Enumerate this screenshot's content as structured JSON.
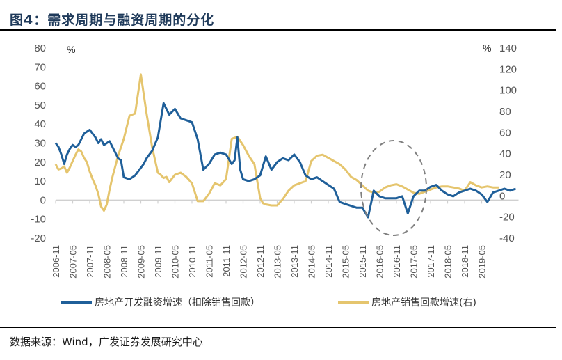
{
  "figure": {
    "title": "图4：需求周期与融资周期的分化",
    "source": "数据来源：Wind，广发证券发展研究中心"
  },
  "chart_data": {
    "type": "line",
    "title": "需求周期与融资周期的分化",
    "left_axis": {
      "label": "%",
      "ylim": [
        -20,
        80
      ],
      "ticks": [
        "80",
        "70",
        "60",
        "50",
        "40",
        "30",
        "20",
        "10",
        "0",
        "-10",
        "-20"
      ]
    },
    "right_axis": {
      "label": "%",
      "ylim": [
        -40,
        140
      ],
      "ticks": [
        "140",
        "120",
        "100",
        "80",
        "60",
        "40",
        "20",
        "0",
        "-20",
        "-40"
      ]
    },
    "x_tick_labels": [
      "2006-11",
      "2007-05",
      "2007-11",
      "2008-05",
      "2008-11",
      "2009-05",
      "2009-11",
      "2010-05",
      "2010-11",
      "2011-05",
      "2011-11",
      "2012-05",
      "2012-11",
      "2013-05",
      "2013-11",
      "2014-05",
      "2014-11",
      "2015-05",
      "2015-11",
      "2016-05",
      "2016-11",
      "2017-05",
      "2017-11",
      "2018-05",
      "2018-11",
      "2019-05"
    ],
    "x_start": "2006-11",
    "grid": false,
    "legend_position": "bottom",
    "annotation": "dashed ellipse highlighting 2016-2017 divergence",
    "series": [
      {
        "name": "房地产开发融资增速（扣除销售回款）",
        "axis": "left",
        "color": "#1f5f99",
        "months_from_start": [
          0,
          1,
          2,
          3,
          4,
          5,
          6,
          7,
          8,
          9,
          10,
          11,
          12,
          13,
          14,
          15,
          16,
          17,
          18,
          19,
          20,
          21,
          22,
          23,
          24,
          26,
          28,
          30,
          31,
          32,
          34,
          36,
          38,
          40,
          42,
          44,
          46,
          48,
          50,
          52,
          54,
          56,
          58,
          60,
          62,
          63,
          64,
          65,
          66,
          68,
          70,
          72,
          74,
          76,
          78,
          80,
          82,
          84,
          86,
          88,
          90,
          92,
          94,
          96,
          98,
          100,
          102,
          104,
          106,
          108,
          110,
          112,
          114,
          116,
          118,
          120,
          122,
          124,
          126,
          128,
          130,
          132,
          134,
          136,
          138,
          140,
          142,
          144,
          146,
          148,
          150,
          152,
          154,
          156,
          158,
          160,
          162
        ],
        "values": [
          30,
          28,
          24,
          19,
          24,
          27,
          29,
          28,
          29,
          32,
          35,
          36,
          37,
          35,
          33,
          30,
          32,
          29,
          30,
          31,
          28,
          25,
          22,
          21,
          12,
          11,
          13,
          17,
          19,
          22,
          26,
          33,
          51,
          45,
          48,
          43,
          42,
          41,
          32,
          16,
          19,
          24,
          25,
          24,
          19,
          21,
          33,
          16,
          11,
          10,
          11,
          13,
          23,
          16,
          20,
          22,
          21,
          24,
          20,
          13,
          11,
          12,
          10,
          8,
          6,
          -1,
          -2,
          -3,
          -4,
          -4,
          -9,
          5,
          2,
          1,
          1,
          1,
          2,
          -7,
          2,
          5,
          5,
          7,
          8,
          5,
          3,
          2,
          4,
          5,
          6,
          5,
          3,
          -1,
          4,
          5,
          6,
          5,
          6
        ]
      },
      {
        "name": "房地产销售回款增速(右)",
        "axis": "right",
        "color": "#e5c56e",
        "months_from_start": [
          0,
          1,
          2,
          3,
          4,
          5,
          6,
          7,
          8,
          9,
          10,
          11,
          12,
          13,
          14,
          15,
          16,
          17,
          18,
          19,
          20,
          22,
          24,
          26,
          28,
          30,
          32,
          34,
          36,
          37,
          38,
          39,
          40,
          42,
          44,
          46,
          48,
          50,
          52,
          54,
          56,
          58,
          60,
          62,
          64,
          66,
          68,
          70,
          72,
          73,
          74,
          76,
          78,
          80,
          82,
          84,
          86,
          88,
          90,
          92,
          94,
          96,
          98,
          100,
          102,
          104,
          106,
          108,
          110,
          112,
          113,
          114,
          116,
          118,
          120,
          122,
          124,
          126,
          128,
          130,
          132,
          134,
          136,
          138,
          140,
          142,
          144,
          146,
          148,
          150,
          152,
          154,
          156,
          158,
          160,
          162
        ],
        "values": [
          30,
          25,
          26,
          28,
          22,
          27,
          33,
          39,
          44,
          42,
          36,
          32,
          23,
          16,
          10,
          2,
          -10,
          -14,
          -8,
          6,
          18,
          38,
          54,
          76,
          78,
          115,
          78,
          46,
          22,
          20,
          17,
          18,
          13,
          20,
          22,
          18,
          12,
          -5,
          -5,
          2,
          12,
          10,
          16,
          54,
          56,
          48,
          38,
          30,
          -2,
          -7,
          -8,
          -9,
          -9,
          -3,
          5,
          10,
          12,
          14,
          33,
          38,
          39,
          36,
          33,
          30,
          25,
          18,
          15,
          10,
          5,
          3,
          3,
          4,
          8,
          10,
          11,
          9,
          6,
          3,
          2,
          4,
          6,
          8,
          9,
          9,
          8,
          7,
          5,
          13,
          10,
          8,
          9,
          8,
          8
        ]
      }
    ]
  }
}
